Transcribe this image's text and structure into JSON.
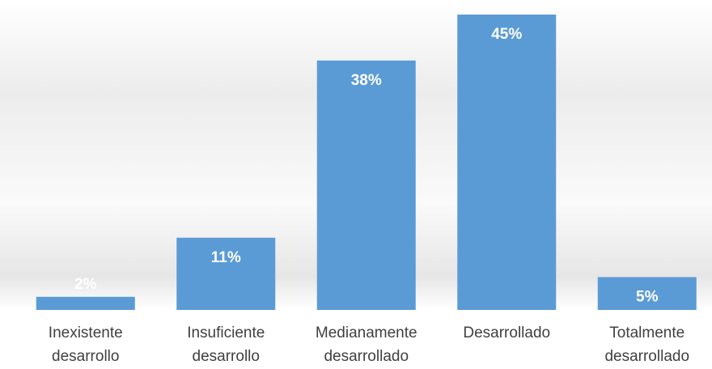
{
  "chart_data": {
    "type": "bar",
    "categories": [
      "Inexistente desarrollo",
      "Insuficiente desarrollo",
      "Medianamente desarrollado",
      "Desarrollado",
      "Totalmente desarrollado"
    ],
    "values": [
      2,
      11,
      38,
      45,
      5
    ],
    "value_labels": [
      "2%",
      "11%",
      "38%",
      "45%",
      "5%"
    ],
    "color": "#5b9bd5"
  }
}
